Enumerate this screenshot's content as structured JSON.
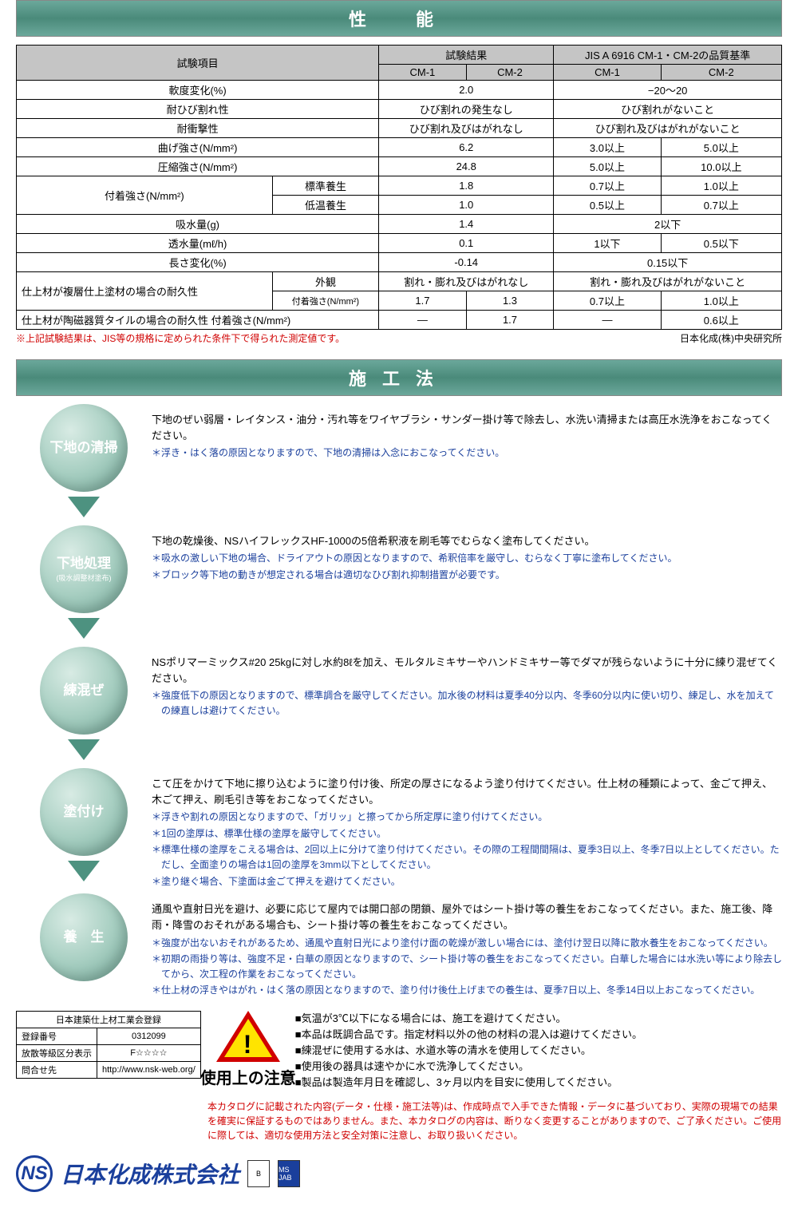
{
  "sections": {
    "performance": "性　能",
    "method": "施工法"
  },
  "perf_table": {
    "headers": {
      "item": "試験項目",
      "result": "試験結果",
      "standard": "JIS A 6916 CM-1・CM-2の品質基準",
      "cm1": "CM-1",
      "cm2": "CM-2"
    },
    "rows": [
      {
        "label": "軟度変化(%)",
        "r": "2.0",
        "s": "−20〜20"
      },
      {
        "label": "耐ひび割れ性",
        "r": "ひび割れの発生なし",
        "s": "ひび割れがないこと"
      },
      {
        "label": "耐衝撃性",
        "r": "ひび割れ及びはがれなし",
        "s": "ひび割れ及びはがれがないこと"
      },
      {
        "label": "曲げ強さ(N/mm²)",
        "r": "6.2",
        "s1": "3.0以上",
        "s2": "5.0以上"
      },
      {
        "label": "圧縮強さ(N/mm²)",
        "r": "24.8",
        "s1": "5.0以上",
        "s2": "10.0以上"
      }
    ],
    "adhesion": {
      "label": "付着強さ(N/mm²)",
      "sub1": "標準養生",
      "r1": "1.8",
      "s1a": "0.7以上",
      "s1b": "1.0以上",
      "sub2": "低温養生",
      "r2": "1.0",
      "s2a": "0.5以上",
      "s2b": "0.7以上"
    },
    "rows2": [
      {
        "label": "吸水量(g)",
        "r": "1.4",
        "s": "2以下"
      },
      {
        "label": "透水量(mℓ/h)",
        "r": "0.1",
        "s1": "1以下",
        "s2": "0.5以下"
      },
      {
        "label": "長さ変化(%)",
        "r": "-0.14",
        "s": "0.15以下"
      }
    ],
    "durability": {
      "label": "仕上材が複層仕上塗材の場合の耐久性",
      "sub1": "外観",
      "r1": "割れ・膨れ及びはがれなし",
      "s1": "割れ・膨れ及びはがれがないこと",
      "sub2": "付着強さ(N/mm²)",
      "r2a": "1.7",
      "r2b": "1.3",
      "s2a": "0.7以上",
      "s2b": "1.0以上"
    },
    "tile": {
      "label": "仕上材が陶磁器質タイルの場合の耐久性 付着強さ(N/mm²)",
      "r1": "—",
      "r2": "1.7",
      "s1": "—",
      "s2": "0.6以上"
    },
    "footnote_left": "※上記試験結果は、JIS等の規格に定められた条件下で得られた測定値です。",
    "footnote_right": "日本化成(株)中央研究所"
  },
  "method": {
    "steps": [
      {
        "title": "下地の清掃",
        "sub": "",
        "body": "下地のぜい弱層・レイタンス・油分・汚れ等をワイヤブラシ・サンダー掛け等で除去し、水洗い清掃または高圧水洗浄をおこなってください。",
        "notes": [
          "＊浮き・はく落の原因となりますので、下地の清掃は入念におこなってください。"
        ]
      },
      {
        "title": "下地処理",
        "sub": "(吸水調整材塗布)",
        "body": "下地の乾燥後、NSハイフレックスHF-1000の5倍希釈液を刷毛等でむらなく塗布してください。",
        "notes": [
          "＊吸水の激しい下地の場合、ドライアウトの原因となりますので、希釈倍率を厳守し、むらなく丁寧に塗布してください。",
          "＊ブロック等下地の動きが想定される場合は適切なひび割れ抑制措置が必要です。"
        ]
      },
      {
        "title": "練混ぜ",
        "sub": "",
        "body": "NSポリマーミックス#20 25kgに対し水約8ℓを加え、モルタルミキサーやハンドミキサー等でダマが残らないように十分に練り混ぜてください。",
        "notes": [
          "＊強度低下の原因となりますので、標準調合を厳守してください。加水後の材料は夏季40分以内、冬季60分以内に使い切り、練足し、水を加えての練直しは避けてください。"
        ]
      },
      {
        "title": "塗付け",
        "sub": "",
        "body": "こて圧をかけて下地に擦り込むように塗り付け後、所定の厚さになるよう塗り付けてください。仕上材の種類によって、金ごて押え、木ごて押え、刷毛引き等をおこなってください。",
        "notes": [
          "＊浮きや割れの原因となりますので、「ガリッ」と擦ってから所定厚に塗り付けてください。",
          "＊1回の塗厚は、標準仕様の塗厚を厳守してください。",
          "＊標準仕様の塗厚をこえる場合は、2回以上に分けて塗り付けてください。その際の工程間間隔は、夏季3日以上、冬季7日以上としてください。ただし、全面塗りの場合は1回の塗厚を3mm以下としてください。",
          "＊塗り継ぐ場合、下塗面は金ごて押えを避けてください。"
        ]
      },
      {
        "title": "養　生",
        "sub": "",
        "body": "通風や直射日光を避け、必要に応じて屋内では開口部の閉鎖、屋外ではシート掛け等の養生をおこなってください。また、施工後、降雨・降雪のおそれがある場合も、シート掛け等の養生をおこなってください。",
        "notes": [
          "＊強度が出ないおそれがあるため、通風や直射日光により塗付け面の乾燥が激しい場合には、塗付け翌日以降に散水養生をおこなってください。",
          "＊初期の雨掛り等は、強度不足・白華の原因となりますので、シート掛け等の養生をおこなってください。白華した場合には水洗い等により除去してから、次工程の作業をおこなってください。",
          "＊仕上材の浮きやはがれ・はく落の原因となりますので、塗り付け後仕上げまでの養生は、夏季7日以上、冬季14日以上おこなってください。"
        ]
      }
    ]
  },
  "registration": {
    "title": "日本建築仕上材工業会登録",
    "rows": [
      [
        "登録番号",
        "0312099"
      ],
      [
        "放散等級区分表示",
        "F☆☆☆☆"
      ],
      [
        "問合せ先",
        "http://www.nsk-web.org/"
      ]
    ]
  },
  "caution": {
    "label": "使用上の注意",
    "items": [
      "■気温が3℃以下になる場合には、施工を避けてください。",
      "■本品は既調合品です。指定材料以外の他の材料の混入は避けてください。",
      "■練混ぜに使用する水は、水道水等の清水を使用してください。",
      "■使用後の器具は速やかに水で洗浄してください。",
      "■製品は製造年月日を確認し、3ヶ月以内を目安に使用してください。"
    ],
    "disclaimer": "本カタログに記載された内容(データ・仕様・施工法等)は、作成時点で入手できた情報・データに基づいており、実際の現場での結果を確実に保証するものではありません。また、本カタログの内容は、断りなく変更することがありますので、ご了承ください。ご使用に際しては、適切な使用方法と安全対策に注意し、お取り扱いください。"
  },
  "company": {
    "logo": "NS",
    "name": "日本化成株式会社",
    "cert1": "B",
    "cert2": "MS JAB"
  }
}
